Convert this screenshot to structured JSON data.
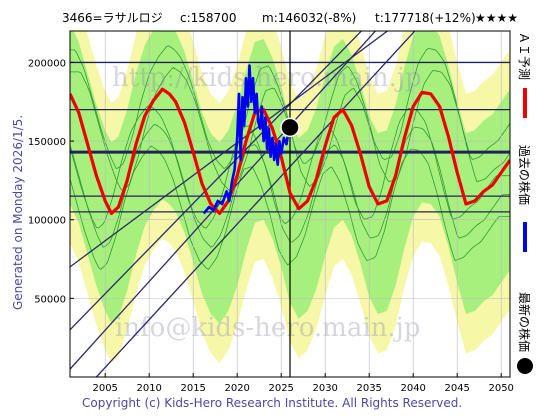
{
  "header": {
    "ticker": "3466=ラサルロジ",
    "current": "c:158700",
    "median": "m:146032(-8%)",
    "target": "t:177718(+12%)",
    "rating": "★★★★"
  },
  "side_label": "Generated on Monday 2026/1/5.",
  "legend": {
    "ai_label": "ＡＩ予測",
    "past_label": "過去の株価",
    "latest_label": "最新の株価"
  },
  "watermark": {
    "top": "http://kids-hero.main.jp",
    "bottom": "info@kids-hero.main.jp"
  },
  "copyright": "Copyright (c) Kids-Hero Research Institute. All Rights Reserved.",
  "colors": {
    "band_green": "#99ee77",
    "band_yellow": "#f7f7a8",
    "forecast": "#ee0000",
    "history": "#0000ee",
    "grid": "#22225a",
    "trend": "#2a2a6a"
  },
  "chart_data": {
    "type": "line",
    "title": "",
    "xlabel": "",
    "ylabel": "",
    "xlim": [
      2001,
      2051
    ],
    "ylim": [
      0,
      220000
    ],
    "x_ticks": [
      2005,
      2010,
      2015,
      2020,
      2025,
      2030,
      2035,
      2040,
      2045,
      2050
    ],
    "y_ticks": [
      50000,
      100000,
      150000,
      200000
    ],
    "y_tick_labels": [
      "50000",
      "100000",
      "150000",
      "200000"
    ],
    "grid": true,
    "horizontal_levels": [
      200000,
      170000,
      143000,
      115000,
      105000
    ],
    "vertical_marker": 2026.0,
    "trend_lines": [
      {
        "x": [
          2001,
          2035.5
        ],
        "y": [
          30000,
          228000
        ]
      },
      {
        "x": [
          2001,
          2039.0
        ],
        "y": [
          70000,
          228000
        ]
      },
      {
        "x": [
          2001,
          2037.0
        ],
        "y": [
          5000,
          228000
        ]
      },
      {
        "x": [
          2004,
          2041.5
        ],
        "y": [
          0,
          228000
        ]
      }
    ],
    "series": [
      {
        "name": "ＡＩ予測",
        "x": [
          2001.0,
          2002.0,
          2003.0,
          2004.0,
          2005.0,
          2005.7,
          2006.5,
          2007.5,
          2008.5,
          2009.5,
          2010.5,
          2011.5,
          2012.3,
          2013.0,
          2014.0,
          2015.0,
          2016.0,
          2017.0,
          2018.0,
          2019.0,
          2020.0,
          2021.0,
          2022.0,
          2023.0,
          2024.0,
          2025.0,
          2026.0,
          2027.0,
          2028.0,
          2029.0,
          2030.0,
          2031.0,
          2032.0,
          2033.0,
          2034.0,
          2035.0,
          2036.0,
          2037.0,
          2038.0,
          2039.0,
          2040.0,
          2041.0,
          2042.0,
          2043.0,
          2044.0,
          2045.0,
          2046.0,
          2047.0,
          2048.0,
          2049.0,
          2050.0,
          2051.0
        ],
        "y": [
          180000,
          168000,
          148000,
          128000,
          112000,
          104000,
          108000,
          125000,
          148000,
          166000,
          176000,
          183000,
          180000,
          175000,
          162000,
          143000,
          123000,
          110000,
          104000,
          112000,
          128000,
          150000,
          168000,
          170000,
          158000,
          140000,
          117000,
          107000,
          112000,
          126000,
          147000,
          165000,
          170000,
          160000,
          142000,
          121000,
          110000,
          112000,
          128000,
          152000,
          172000,
          181000,
          180000,
          172000,
          153000,
          130000,
          110000,
          112000,
          118000,
          122000,
          130000,
          138000
        ]
      },
      {
        "name": "過去の株価",
        "x": [
          2016.2,
          2016.8,
          2017.3,
          2017.8,
          2018.3,
          2018.8,
          2019.1,
          2019.4,
          2019.7,
          2020.0,
          2020.2,
          2020.4,
          2020.6,
          2020.8,
          2021.0,
          2021.2,
          2021.4,
          2021.6,
          2021.8,
          2022.0,
          2022.2,
          2022.4,
          2022.6,
          2022.8,
          2023.0,
          2023.2,
          2023.4,
          2023.6,
          2023.8,
          2024.0,
          2024.2,
          2024.4,
          2024.6,
          2024.8,
          2025.0,
          2025.3,
          2025.6,
          2025.9
        ],
        "y": [
          104000,
          108000,
          106000,
          112000,
          110000,
          118000,
          112000,
          124000,
          132000,
          152000,
          180000,
          138000,
          178000,
          160000,
          190000,
          172000,
          198000,
          175000,
          190000,
          168000,
          180000,
          162000,
          158000,
          172000,
          150000,
          165000,
          145000,
          158000,
          140000,
          152000,
          138000,
          148000,
          135000,
          150000,
          142000,
          152000,
          148000,
          158700
        ]
      }
    ],
    "latest": {
      "x": 2026.0,
      "y": 158700
    }
  }
}
